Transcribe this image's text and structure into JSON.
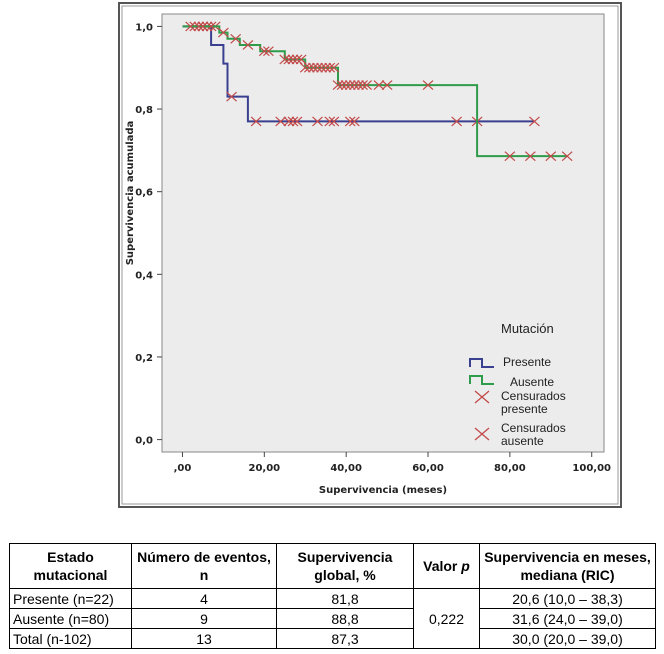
{
  "chart_data": {
    "type": "kaplan-meier",
    "xlabel": "Supervivencia (meses)",
    "ylabel": "Supervivencia acumulada",
    "xlim": [
      -5,
      103
    ],
    "ylim": [
      -0.03,
      1.03
    ],
    "x_ticks": [
      ",00",
      "20,00",
      "40,00",
      "60,00",
      "80,00",
      "100,00"
    ],
    "x_tick_values": [
      0,
      20,
      40,
      60,
      80,
      100
    ],
    "y_ticks": [
      "0,0",
      "0,2",
      "0,4",
      "0,6",
      "0,8",
      "1,0"
    ],
    "y_tick_values": [
      0,
      0.2,
      0.4,
      0.6,
      0.8,
      1.0
    ],
    "legend": {
      "title": "Mutación",
      "position": "right",
      "entries": [
        "Presente",
        "Ausente",
        "Censurados presente",
        "Censurados ausente"
      ]
    },
    "series": [
      {
        "name": "Presente",
        "color": "#3a3f8f",
        "steps": [
          [
            0,
            1.0
          ],
          [
            7,
            1.0
          ],
          [
            7,
            0.955
          ],
          [
            10,
            0.955
          ],
          [
            10,
            0.91
          ],
          [
            11,
            0.91
          ],
          [
            11,
            0.83
          ],
          [
            16,
            0.83
          ],
          [
            16,
            0.77
          ],
          [
            86,
            0.77
          ]
        ],
        "censored": [
          3,
          5,
          6,
          8,
          12,
          18,
          24,
          26,
          27,
          28,
          33,
          36,
          37,
          41,
          42,
          67,
          72,
          86
        ],
        "censored_y": [
          1.0,
          1.0,
          1.0,
          1.0,
          0.83,
          0.77,
          0.77,
          0.77,
          0.77,
          0.77,
          0.77,
          0.77,
          0.77,
          0.77,
          0.77,
          0.77,
          0.77,
          0.77
        ]
      },
      {
        "name": "Ausente",
        "color": "#2e9c4a",
        "steps": [
          [
            0,
            1.0
          ],
          [
            9,
            1.0
          ],
          [
            9,
            0.985
          ],
          [
            11,
            0.985
          ],
          [
            11,
            0.97
          ],
          [
            14,
            0.97
          ],
          [
            14,
            0.955
          ],
          [
            19,
            0.955
          ],
          [
            19,
            0.94
          ],
          [
            25,
            0.94
          ],
          [
            25,
            0.92
          ],
          [
            30,
            0.92
          ],
          [
            30,
            0.9
          ],
          [
            38,
            0.9
          ],
          [
            38,
            0.858
          ],
          [
            72,
            0.858
          ],
          [
            72,
            0.686
          ],
          [
            94,
            0.686
          ]
        ],
        "censored": [
          2,
          4,
          5,
          7,
          10,
          13,
          16,
          20,
          21,
          25,
          26,
          27,
          28,
          29,
          30,
          31,
          32,
          33,
          34,
          35,
          36,
          37,
          38,
          39,
          40,
          41,
          42,
          43,
          44,
          45,
          48,
          50,
          60,
          80,
          85,
          90,
          94
        ],
        "censored_y": [
          1.0,
          1.0,
          1.0,
          1.0,
          0.985,
          0.97,
          0.955,
          0.94,
          0.94,
          0.92,
          0.92,
          0.92,
          0.92,
          0.92,
          0.9,
          0.9,
          0.9,
          0.9,
          0.9,
          0.9,
          0.9,
          0.9,
          0.858,
          0.858,
          0.858,
          0.858,
          0.858,
          0.858,
          0.858,
          0.858,
          0.858,
          0.858,
          0.858,
          0.686,
          0.686,
          0.686,
          0.686
        ]
      }
    ]
  },
  "table": {
    "headers": {
      "estado": "Estado mutacional",
      "eventos": "Número de eventos, n",
      "supervivencia": "Supervivencia global, %",
      "valor": "Valor ",
      "valor_p": "p",
      "mediana": "Supervivencia en meses, mediana (RIC)"
    },
    "rows": [
      {
        "grupo": "Presente (n=22)",
        "eventos": "4",
        "global": "81,8",
        "mediana": "20,6 (10,0 – 38,3)"
      },
      {
        "grupo": "Ausente (n=80)",
        "eventos": "9",
        "global": "88,8",
        "mediana": "31,6 (24,0 – 39,0)"
      },
      {
        "grupo": "Total (n-102)",
        "eventos": "13",
        "global": "87,3",
        "mediana": "30,0 (20,0 – 39,0)"
      }
    ],
    "p_value": "0,222"
  }
}
